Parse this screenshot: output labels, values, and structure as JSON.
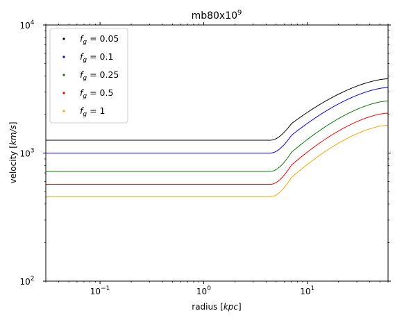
{
  "chart_data": {
    "type": "line",
    "title": "mb80x10",
    "title_superscript": "9",
    "xlabel_prefix": "radius [",
    "xlabel_unit": "kpc",
    "xlabel_suffix": "]",
    "ylabel_prefix": "velocity [",
    "ylabel_unit": "km/s",
    "ylabel_suffix": "]",
    "x_scale": "log",
    "y_scale": "log",
    "xlim": [
      0.03,
      60
    ],
    "ylim": [
      100,
      10000
    ],
    "x_ticks": [
      {
        "value": 0.1,
        "base": "10",
        "exp": "−1"
      },
      {
        "value": 1,
        "base": "10",
        "exp": "0"
      },
      {
        "value": 10,
        "base": "10",
        "exp": "1"
      }
    ],
    "y_ticks": [
      {
        "value": 100,
        "base": "10",
        "exp": "2"
      },
      {
        "value": 1000,
        "base": "10",
        "exp": "3"
      },
      {
        "value": 10000,
        "base": "10",
        "exp": "4"
      }
    ],
    "grid": false,
    "legend_position": "top-left",
    "series": [
      {
        "name_var": "f",
        "name_sub": "g",
        "name_value": " = 0.05",
        "color": "#000000",
        "plateau": 1260,
        "r_break": 4.4,
        "end_value": 3800
      },
      {
        "name_var": "f",
        "name_sub": "g",
        "name_value": " = 0.1",
        "color": "#0000ff",
        "plateau": 1000,
        "r_break": 4.4,
        "end_value": 3250
      },
      {
        "name_var": "f",
        "name_sub": "g",
        "name_value": " = 0.25",
        "color": "#008000",
        "plateau": 720,
        "r_break": 4.4,
        "end_value": 2550
      },
      {
        "name_var": "f",
        "name_sub": "g",
        "name_value": " = 0.5",
        "color": "#ff0000",
        "plateau": 570,
        "r_break": 4.4,
        "end_value": 2050
      },
      {
        "name_var": "f",
        "name_sub": "g",
        "name_value": " = 1",
        "color": "#ffa500",
        "plateau": 455,
        "r_break": 4.4,
        "end_value": 1650
      }
    ]
  }
}
